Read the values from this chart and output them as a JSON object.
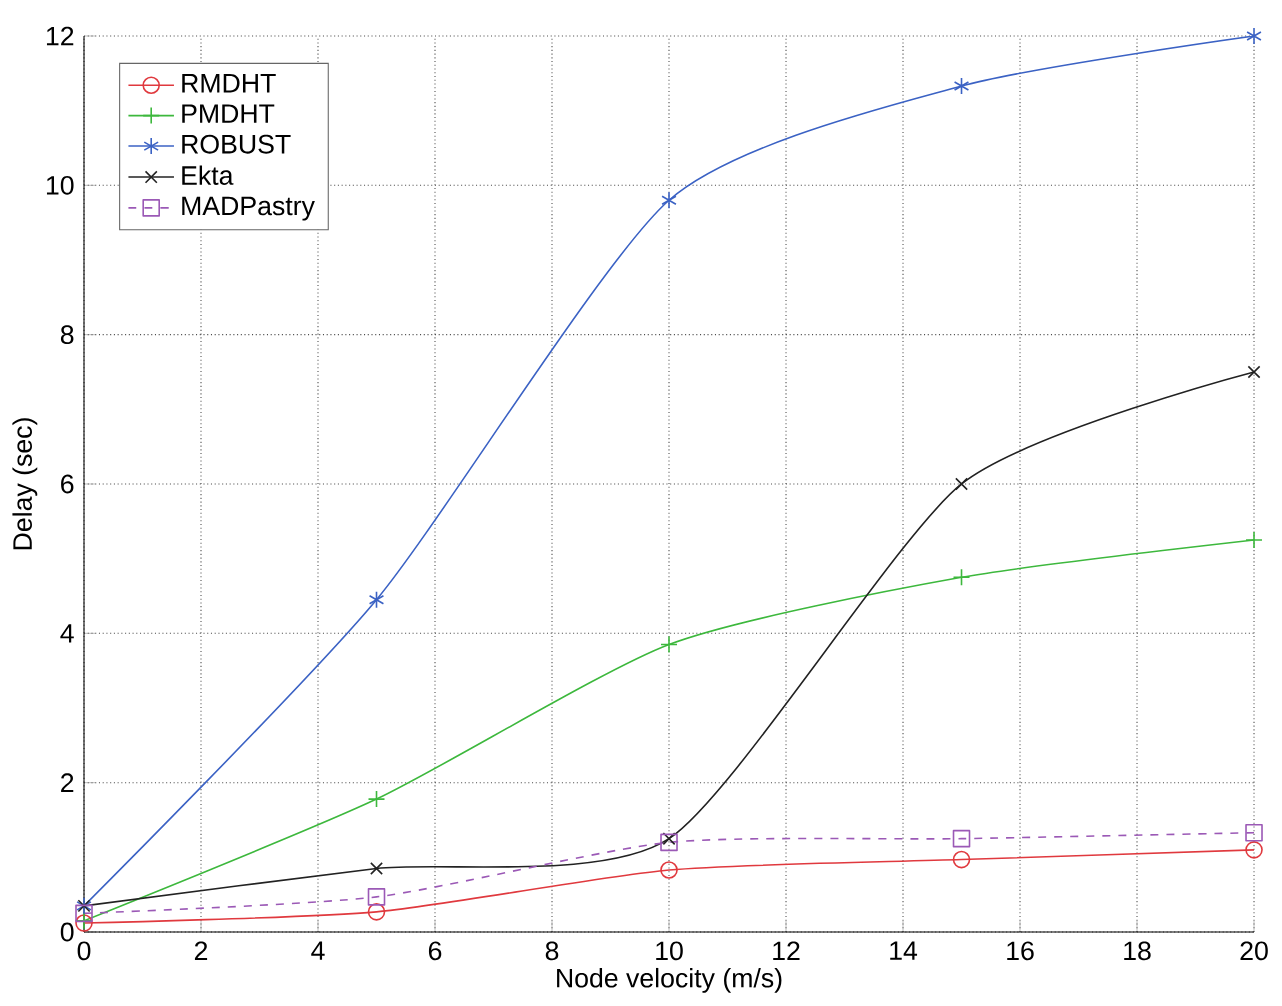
{
  "chart_data": {
    "type": "line",
    "xlabel": "Node velocity (m/s)",
    "ylabel": "Delay (sec)",
    "x": [
      0,
      5,
      10,
      15,
      20
    ],
    "series": [
      {
        "name": "RMDHT",
        "color": "#e0393e",
        "values": [
          0.12,
          0.27,
          0.83,
          0.97,
          1.1
        ],
        "marker": "circle",
        "line_style": "solid"
      },
      {
        "name": "PMDHT",
        "color": "#3db83d",
        "values": [
          0.15,
          1.78,
          3.85,
          4.75,
          5.25
        ],
        "marker": "plus",
        "line_style": "solid"
      },
      {
        "name": "ROBUST",
        "color": "#3b62c4",
        "values": [
          0.35,
          4.45,
          9.8,
          11.33,
          12
        ],
        "marker": "cross",
        "line_style": "solid"
      },
      {
        "name": "Ekta",
        "color": "#222222",
        "values": [
          0.35,
          0.85,
          1.25,
          6.0,
          7.5
        ],
        "marker": "x",
        "line_style": "solid"
      },
      {
        "name": "MADPastry",
        "color": "#9b59b6",
        "values": [
          0.25,
          0.47,
          1.2,
          1.25,
          1.33
        ],
        "marker": "square",
        "line_style": "dashed"
      }
    ],
    "xlim": [
      0,
      20
    ],
    "xticks": [
      0,
      2,
      4,
      6,
      8,
      10,
      12,
      14,
      16,
      18,
      20
    ],
    "ylim": [
      0,
      12
    ],
    "yticks": [
      0,
      2,
      4,
      6,
      8,
      10,
      12
    ],
    "grid": true,
    "legend": "top left"
  }
}
